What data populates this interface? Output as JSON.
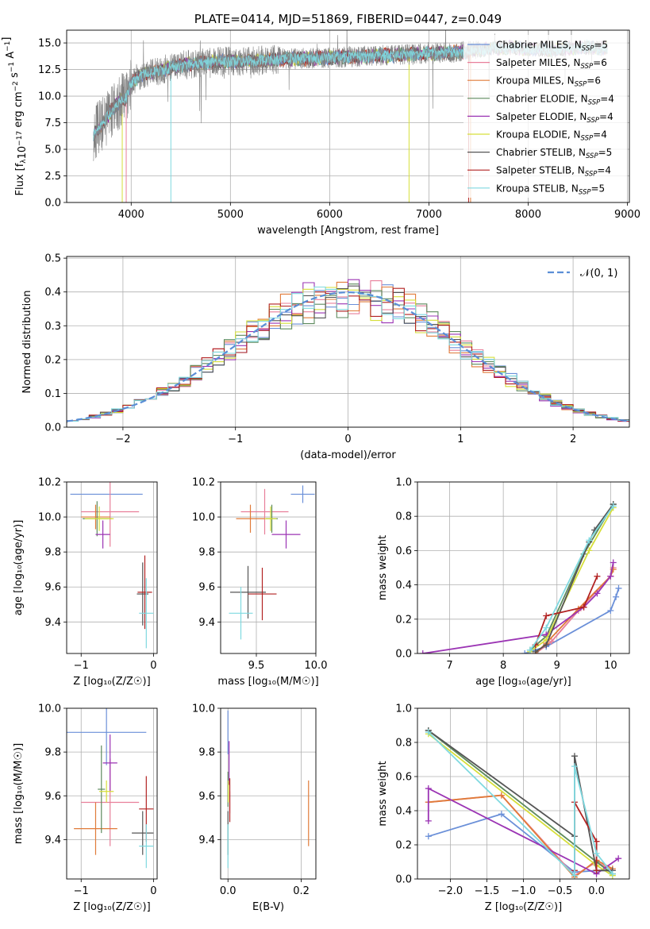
{
  "colors": {
    "chabrier_miles": "#6a8fd8",
    "salpeter_miles": "#e87f9a",
    "kroupa_miles": "#e07b39",
    "chabrier_elodie": "#5d8a5d",
    "salpeter_elodie": "#9b34b4",
    "kroupa_elodie": "#d6df3a",
    "chabrier_stelib": "#555555",
    "salpeter_stelib": "#b22222",
    "kroupa_stelib": "#7fd9e0",
    "data": "#808080",
    "normal": "#5b8ed6"
  },
  "legend": [
    {
      "id": "chabrier_miles",
      "label": "Chabrier MILES, N",
      "sub": "SSP",
      "suffix": "=5"
    },
    {
      "id": "salpeter_miles",
      "label": "Salpeter MILES, N",
      "sub": "SSP",
      "suffix": "=6"
    },
    {
      "id": "kroupa_miles",
      "label": "Kroupa MILES, N",
      "sub": "SSP",
      "suffix": "=6"
    },
    {
      "id": "chabrier_elodie",
      "label": "Chabrier ELODIE, N",
      "sub": "SSP",
      "suffix": "=4"
    },
    {
      "id": "salpeter_elodie",
      "label": "Salpeter ELODIE, N",
      "sub": "SSP",
      "suffix": "=4"
    },
    {
      "id": "kroupa_elodie",
      "label": "Kroupa ELODIE, N",
      "sub": "SSP",
      "suffix": "=4"
    },
    {
      "id": "chabrier_stelib",
      "label": "Chabrier STELIB, N",
      "sub": "SSP",
      "suffix": "=5"
    },
    {
      "id": "salpeter_stelib",
      "label": "Salpeter STELIB, N",
      "sub": "SSP",
      "suffix": "=4"
    },
    {
      "id": "kroupa_stelib",
      "label": "Kroupa STELIB, N",
      "sub": "SSP",
      "suffix": "=5"
    }
  ],
  "chart_data": [
    {
      "id": "spectrum",
      "type": "line",
      "title": "PLATE=0414, MJD=51869, FIBERID=0447, z=0.049",
      "xlabel": "wavelength [Angstrom, rest frame]",
      "ylabel": "Flux [f",
      "ylabel_parts": {
        "a": "Flux [f",
        "sub": "λ",
        "b": "10",
        "sup1": "−17",
        "c": " erg cm",
        "sup2": "−2",
        "d": " s",
        "sup3": "−1",
        "e": " A",
        "sup4": "−1",
        "f": "]"
      },
      "xlim": [
        3350,
        9020
      ],
      "ylim": [
        0,
        16.2
      ],
      "xticks": [
        4000,
        5000,
        6000,
        7000,
        8000,
        9000
      ],
      "yticks": [
        0.0,
        2.5,
        5.0,
        7.5,
        10.0,
        12.5,
        15.0
      ],
      "xticklabels": [
        "4000",
        "5000",
        "6000",
        "7000",
        "8000",
        "9000"
      ],
      "yticklabels": [
        "0.0",
        "2.5",
        "5.0",
        "7.5",
        "10.0",
        "12.5",
        "15.0"
      ],
      "continuum": [
        [
          3620,
          6.5
        ],
        [
          3700,
          7.2
        ],
        [
          3800,
          8.6
        ],
        [
          3900,
          9.6
        ],
        [
          3950,
          9.8
        ],
        [
          4000,
          11.2
        ],
        [
          4100,
          12.0
        ],
        [
          4300,
          12.4
        ],
        [
          4500,
          12.9
        ],
        [
          4800,
          13.2
        ],
        [
          5200,
          13.3
        ],
        [
          5600,
          13.5
        ],
        [
          6000,
          13.6
        ],
        [
          6500,
          13.8
        ],
        [
          7000,
          14.0
        ],
        [
          7400,
          14.2
        ],
        [
          7800,
          14.6
        ],
        [
          8200,
          14.3
        ],
        [
          8500,
          14.6
        ],
        [
          8800,
          14.5
        ]
      ],
      "model_dropouts": [
        {
          "id": "kroupa_miles",
          "x": 7420
        },
        {
          "id": "salpeter_stelib",
          "x": 7400
        },
        {
          "id": "kroupa_elodie",
          "x": 6800
        },
        {
          "id": "kroupa_stelib",
          "x": 4400
        },
        {
          "id": "kroupa_elodie",
          "x": 3910
        },
        {
          "id": "salpeter_miles",
          "x": 3950
        }
      ]
    },
    {
      "id": "residuals",
      "type": "bar",
      "xlabel": "(data-model)/error",
      "ylabel": "Normed distribution",
      "xlim": [
        -2.5,
        2.5
      ],
      "ylim": [
        0,
        0.505
      ],
      "xticks": [
        -2,
        -1,
        0,
        1,
        2
      ],
      "yticks": [
        0.0,
        0.1,
        0.2,
        0.3,
        0.4,
        0.5
      ],
      "xticklabels": [
        "−2",
        "−1",
        "0",
        "1",
        "2"
      ],
      "yticklabels": [
        "0.0",
        "0.1",
        "0.2",
        "0.3",
        "0.4",
        "0.5"
      ],
      "bin_width": 0.1,
      "normal_label": "𝒩(0, 1)"
    },
    {
      "id": "age_vs_z",
      "type": "scatter",
      "xlabel": "Z [log₁₀(Z/Z☉)]",
      "ylabel": "age  [log₁₀(age/yr)]",
      "xlim": [
        -1.2,
        0.05
      ],
      "ylim": [
        9.22,
        10.2
      ],
      "xticks": [
        -1,
        0
      ],
      "yticks": [
        9.4,
        9.6,
        9.8,
        10.0,
        10.2
      ],
      "xticklabels": [
        "−1",
        "0"
      ],
      "yticklabels": [
        "9.4",
        "9.6",
        "9.8",
        "10.0",
        "10.2"
      ],
      "points": [
        {
          "id": "chabrier_miles",
          "x": -0.65,
          "xerr": 0.5,
          "y": 10.13,
          "yerr": 0.0
        },
        {
          "id": "salpeter_miles",
          "x": -0.6,
          "xerr": 0.4,
          "y": 10.03,
          "yerr": 0.2
        },
        {
          "id": "kroupa_miles",
          "x": -0.8,
          "xerr": 0.2,
          "y": 10.0,
          "yerr": 0.07
        },
        {
          "id": "chabrier_elodie",
          "x": -0.78,
          "xerr": 0.2,
          "y": 9.99,
          "yerr": 0.1
        },
        {
          "id": "salpeter_elodie",
          "x": -0.7,
          "xerr": 0.1,
          "y": 9.9,
          "yerr": 0.08
        },
        {
          "id": "kroupa_elodie",
          "x": -0.75,
          "xerr": 0.2,
          "y": 9.99,
          "yerr": 0.07
        },
        {
          "id": "chabrier_stelib",
          "x": -0.15,
          "xerr": 0.08,
          "y": 9.56,
          "yerr": 0.18
        },
        {
          "id": "salpeter_stelib",
          "x": -0.12,
          "xerr": 0.1,
          "y": 9.57,
          "yerr": 0.21
        },
        {
          "id": "kroupa_stelib",
          "x": -0.1,
          "xerr": 0.1,
          "y": 9.45,
          "yerr": 0.2
        }
      ]
    },
    {
      "id": "age_vs_mass",
      "type": "scatter",
      "xlabel": "mass [log₁₀(M/M☉)]",
      "ylabel": "",
      "xlim": [
        9.2,
        10.0
      ],
      "ylim": [
        9.22,
        10.2
      ],
      "xticks": [
        9.5,
        10.0
      ],
      "yticks": [
        9.4,
        9.6,
        9.8,
        10.0,
        10.2
      ],
      "xticklabels": [
        "9.5",
        "10.0"
      ],
      "yticklabels": [
        "9.4",
        "9.6",
        "9.8",
        "10.0",
        "10.2"
      ],
      "points": [
        {
          "id": "chabrier_miles",
          "x": 9.89,
          "xerr": 0.1,
          "y": 10.13,
          "yerr": 0.05
        },
        {
          "id": "salpeter_miles",
          "x": 9.57,
          "xerr": 0.2,
          "y": 10.03,
          "yerr": 0.13
        },
        {
          "id": "kroupa_miles",
          "x": 9.45,
          "xerr": 0.12,
          "y": 9.99,
          "yerr": 0.08
        },
        {
          "id": "chabrier_elodie",
          "x": 9.63,
          "xerr": 0.05,
          "y": 9.99,
          "yerr": 0.08
        },
        {
          "id": "salpeter_elodie",
          "x": 9.75,
          "xerr": 0.12,
          "y": 9.9,
          "yerr": 0.08
        },
        {
          "id": "kroupa_elodie",
          "x": 9.62,
          "xerr": 0.05,
          "y": 9.99,
          "yerr": 0.07
        },
        {
          "id": "chabrier_stelib",
          "x": 9.43,
          "xerr": 0.15,
          "y": 9.57,
          "yerr": 0.15
        },
        {
          "id": "salpeter_stelib",
          "x": 9.55,
          "xerr": 0.12,
          "y": 9.56,
          "yerr": 0.15
        },
        {
          "id": "kroupa_stelib",
          "x": 9.37,
          "xerr": 0.1,
          "y": 9.45,
          "yerr": 0.15
        }
      ]
    },
    {
      "id": "mass_weight_vs_age",
      "type": "line",
      "xlabel": "age  [log₁₀(age/yr)]",
      "ylabel": "mass weight",
      "xlim": [
        6.4,
        10.35
      ],
      "ylim": [
        0,
        1.0
      ],
      "xticks": [
        7,
        8,
        9,
        10
      ],
      "yticks": [
        0.0,
        0.2,
        0.4,
        0.6,
        0.8,
        1.0
      ],
      "xticklabels": [
        "7",
        "8",
        "9",
        "10"
      ],
      "yticklabels": [
        "0.0",
        "0.2",
        "0.4",
        "0.6",
        "0.8",
        "1.0"
      ],
      "series": [
        {
          "id": "chabrier_miles",
          "x": [
            8.4,
            8.8,
            10.0,
            10.1,
            10.15
          ],
          "y": [
            0.0,
            0.04,
            0.25,
            0.33,
            0.38
          ]
        },
        {
          "id": "salpeter_miles",
          "x": [
            8.6,
            8.9,
            9.4,
            10.0,
            10.05
          ],
          "y": [
            0.0,
            0.07,
            0.25,
            0.45,
            0.5
          ]
        },
        {
          "id": "kroupa_miles",
          "x": [
            8.6,
            8.8,
            9.4,
            10.0,
            10.05
          ],
          "y": [
            0.0,
            0.06,
            0.26,
            0.45,
            0.49
          ]
        },
        {
          "id": "chabrier_elodie",
          "x": [
            8.5,
            8.8,
            9.5,
            10.05
          ],
          "y": [
            0.02,
            0.1,
            0.58,
            0.87
          ]
        },
        {
          "id": "salpeter_elodie",
          "x": [
            6.5,
            8.8,
            9.5,
            9.75,
            10.0,
            10.05
          ],
          "y": [
            0.0,
            0.11,
            0.27,
            0.35,
            0.45,
            0.53
          ]
        },
        {
          "id": "kroupa_elodie",
          "x": [
            8.5,
            8.8,
            9.6,
            10.05
          ],
          "y": [
            0.01,
            0.08,
            0.6,
            0.85
          ]
        },
        {
          "id": "chabrier_stelib",
          "x": [
            8.6,
            8.8,
            9.6,
            9.7,
            10.05
          ],
          "y": [
            0.01,
            0.05,
            0.65,
            0.72,
            0.87
          ]
        },
        {
          "id": "salpeter_stelib",
          "x": [
            8.6,
            8.8,
            9.5,
            9.75
          ],
          "y": [
            0.05,
            0.22,
            0.27,
            0.45
          ]
        },
        {
          "id": "kroupa_stelib",
          "x": [
            8.5,
            8.8,
            9.6,
            10.05
          ],
          "y": [
            0.02,
            0.15,
            0.66,
            0.86
          ]
        }
      ]
    },
    {
      "id": "mass_vs_z",
      "type": "scatter",
      "xlabel": "Z [log₁₀(Z/Z☉)]",
      "ylabel": "mass [log₁₀(M/M☉)]",
      "xlim": [
        -1.2,
        0.05
      ],
      "ylim": [
        9.22,
        10.0
      ],
      "xticks": [
        -1,
        0
      ],
      "yticks": [
        9.4,
        9.6,
        9.8,
        10.0
      ],
      "xticklabels": [
        "−1",
        "0"
      ],
      "yticklabels": [
        "9.4",
        "9.6",
        "9.8",
        "10.0"
      ],
      "points": [
        {
          "id": "chabrier_miles",
          "x": -0.65,
          "xerr": 0.55,
          "y": 9.89,
          "yerr": 0.15
        },
        {
          "id": "salpeter_miles",
          "x": -0.6,
          "xerr": 0.4,
          "y": 9.57,
          "yerr": 0.2
        },
        {
          "id": "kroupa_miles",
          "x": -0.8,
          "xerr": 0.3,
          "y": 9.45,
          "yerr": 0.12
        },
        {
          "id": "chabrier_elodie",
          "x": -0.72,
          "xerr": 0.05,
          "y": 9.63,
          "yerr": 0.2
        },
        {
          "id": "salpeter_elodie",
          "x": -0.6,
          "xerr": 0.1,
          "y": 9.75,
          "yerr": 0.13
        },
        {
          "id": "kroupa_elodie",
          "x": -0.65,
          "xerr": 0.1,
          "y": 9.62,
          "yerr": 0.05
        },
        {
          "id": "chabrier_stelib",
          "x": -0.15,
          "xerr": 0.15,
          "y": 9.43,
          "yerr": 0.1
        },
        {
          "id": "salpeter_stelib",
          "x": -0.1,
          "xerr": 0.1,
          "y": 9.54,
          "yerr": 0.15
        },
        {
          "id": "kroupa_stelib",
          "x": -0.1,
          "xerr": 0.1,
          "y": 9.37,
          "yerr": 0.1
        }
      ]
    },
    {
      "id": "mass_vs_ebv",
      "type": "scatter",
      "xlabel": "E(B-V)",
      "ylabel": "",
      "xlim": [
        -0.02,
        0.24
      ],
      "ylim": [
        9.22,
        10.0
      ],
      "xticks": [
        0.0,
        0.2
      ],
      "yticks": [
        9.4,
        9.6,
        9.8,
        10.0
      ],
      "xticklabels": [
        "0.0",
        "0.2"
      ],
      "yticklabels": [
        "9.4",
        "9.6",
        "9.8",
        "10.0"
      ],
      "points": [
        {
          "id": "chabrier_miles",
          "x": 0.0,
          "xerr": 0.0,
          "y": 9.89,
          "yerr": 0.1
        },
        {
          "id": "salpeter_miles",
          "x": 0.005,
          "xerr": 0.0,
          "y": 9.57,
          "yerr": 0.05
        },
        {
          "id": "kroupa_miles",
          "x": 0.22,
          "xerr": 0.0,
          "y": 9.52,
          "yerr": 0.15
        },
        {
          "id": "chabrier_elodie",
          "x": 0.0,
          "xerr": 0.0,
          "y": 9.63,
          "yerr": 0.08
        },
        {
          "id": "salpeter_elodie",
          "x": 0.003,
          "xerr": 0.0,
          "y": 9.75,
          "yerr": 0.1
        },
        {
          "id": "kroupa_elodie",
          "x": 0.001,
          "xerr": 0.0,
          "y": 9.62,
          "yerr": 0.05
        },
        {
          "id": "chabrier_stelib",
          "x": 0.0,
          "xerr": 0.0,
          "y": 9.43,
          "yerr": 0.1
        },
        {
          "id": "salpeter_stelib",
          "x": 0.005,
          "xerr": 0.0,
          "y": 9.58,
          "yerr": 0.1
        },
        {
          "id": "kroupa_stelib",
          "x": 0.0,
          "xerr": 0.0,
          "y": 9.37,
          "yerr": 0.1
        }
      ]
    },
    {
      "id": "mass_weight_vs_z",
      "type": "line",
      "xlabel": "Z [log₁₀(Z/Z☉)]",
      "ylabel": "mass weight",
      "xlim": [
        -2.45,
        0.45
      ],
      "ylim": [
        0,
        1.0
      ],
      "xticks": [
        -2.0,
        -1.5,
        -1.0,
        -0.5,
        0.0
      ],
      "yticks": [
        0.0,
        0.2,
        0.4,
        0.6,
        0.8,
        1.0
      ],
      "xticklabels": [
        "−2.0",
        "−1.5",
        "−1.0",
        "−0.5",
        "0.0"
      ],
      "yticklabels": [
        "0.0",
        "0.2",
        "0.4",
        "0.6",
        "0.8",
        "1.0"
      ],
      "series": [
        {
          "id": "chabrier_miles",
          "x": [
            -2.3,
            -1.3,
            -0.3,
            0.0,
            0.22
          ],
          "y": [
            0.25,
            0.38,
            0.04,
            0.05,
            0.05
          ]
        },
        {
          "id": "salpeter_miles",
          "x": [
            -2.3,
            -1.3,
            -0.3,
            0.0,
            0.22
          ],
          "y": [
            0.45,
            0.49,
            0.02,
            0.1,
            0.05
          ]
        },
        {
          "id": "kroupa_miles",
          "x": [
            -2.3,
            -1.3,
            -0.3,
            0.0,
            0.22
          ],
          "y": [
            0.45,
            0.49,
            0.01,
            0.11,
            0.06
          ]
        },
        {
          "id": "chabrier_elodie",
          "x": [
            -2.3,
            0.0,
            0.22
          ],
          "y": [
            0.87,
            0.1,
            0.03
          ]
        },
        {
          "id": "salpeter_elodie",
          "x": [
            -2.3,
            -2.3,
            0.0,
            0.3
          ],
          "y": [
            0.34,
            0.53,
            0.03,
            0.12
          ]
        },
        {
          "id": "kroupa_elodie",
          "x": [
            -2.3,
            0.0,
            0.22
          ],
          "y": [
            0.85,
            0.08,
            0.02
          ]
        },
        {
          "id": "chabrier_stelib",
          "x": [
            -2.3,
            -0.3,
            -0.3,
            0.0,
            0.22
          ],
          "y": [
            0.87,
            0.25,
            0.72,
            0.05,
            0.05
          ]
        },
        {
          "id": "salpeter_stelib",
          "x": [
            -0.3,
            -0.3,
            0.0,
            0.0
          ],
          "y": [
            0.05,
            0.45,
            0.22,
            0.05
          ]
        },
        {
          "id": "kroupa_stelib",
          "x": [
            -2.3,
            -0.3,
            -0.3,
            0.0,
            0.22
          ],
          "y": [
            0.86,
            0.02,
            0.66,
            0.15,
            0.03
          ]
        }
      ]
    }
  ]
}
